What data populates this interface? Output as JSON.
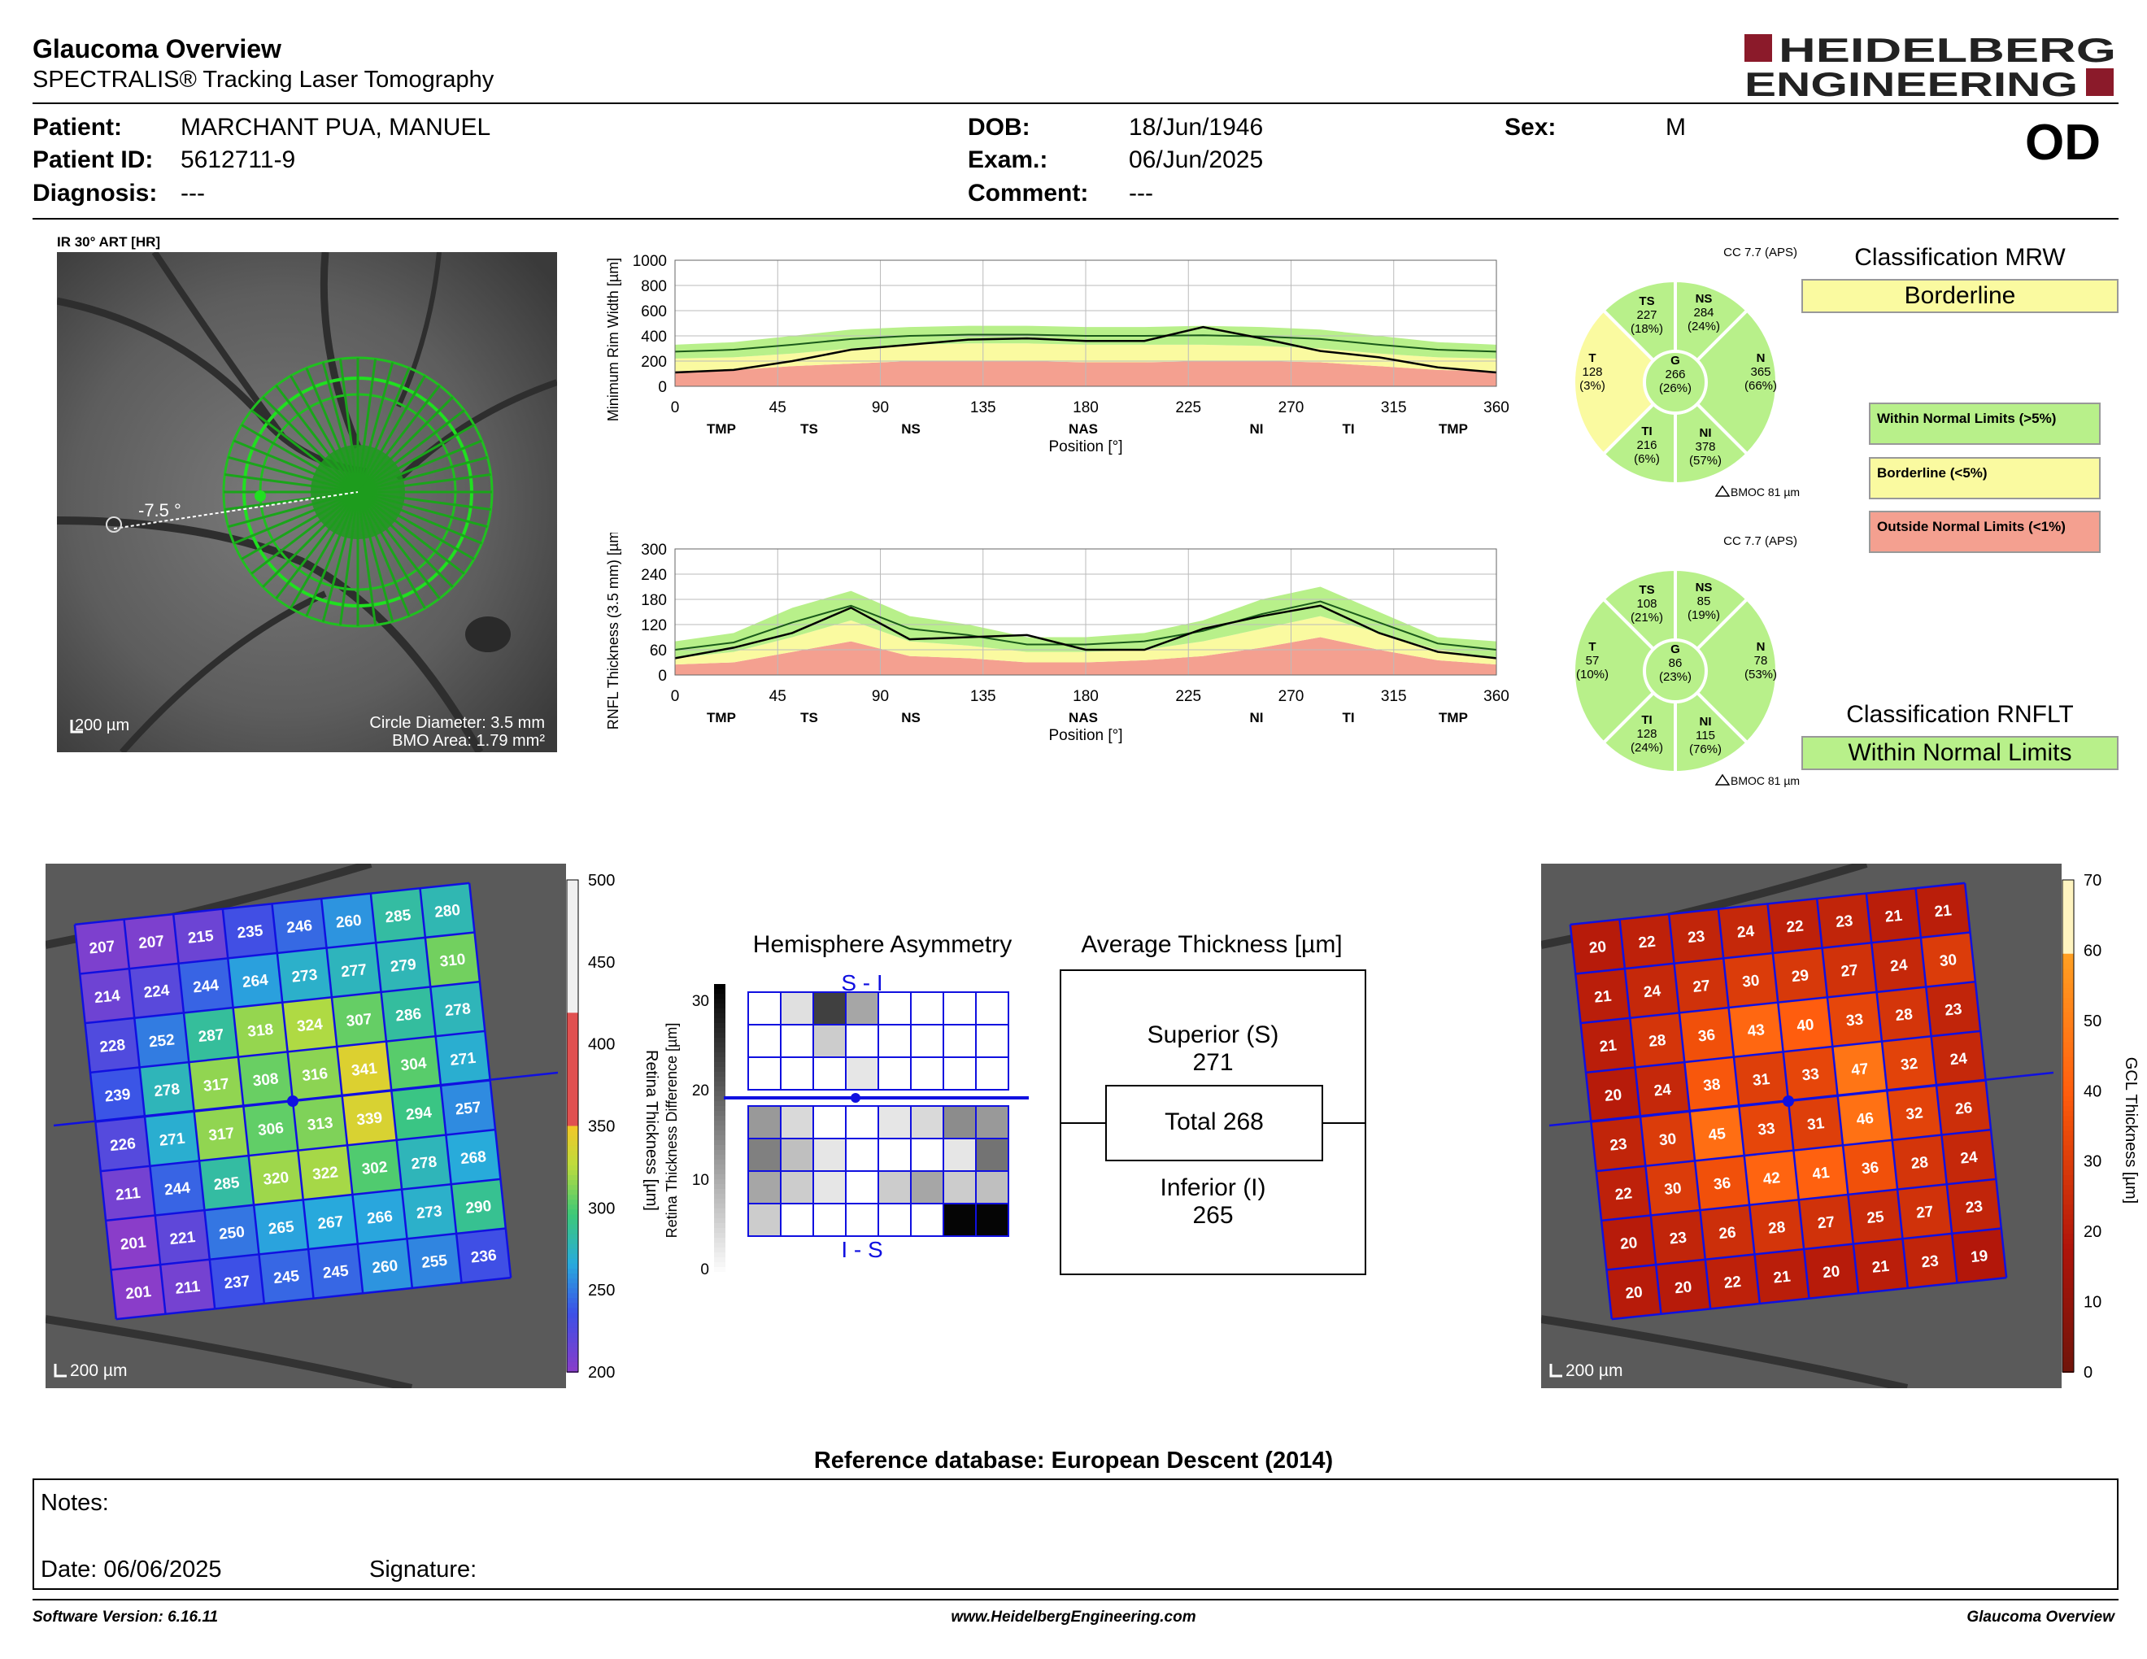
{
  "header": {
    "title": "Glaucoma Overview",
    "subtitle": "SPECTRALIS® Tracking Laser Tomography",
    "logo_line1": "HEIDELBERG",
    "logo_line2": "ENGINEERING",
    "eye": "OD"
  },
  "patient": {
    "patient_label": "Patient:",
    "patient_value": "MARCHANT PUA, MANUEL",
    "id_label": "Patient ID:",
    "id_value": "5612711-9",
    "diagnosis_label": "Diagnosis:",
    "diagnosis_value": "---",
    "dob_label": "DOB:",
    "dob_value": "18/Jun/1946",
    "exam_label": "Exam.:",
    "exam_value": "06/Jun/2025",
    "comment_label": "Comment:",
    "comment_value": "---",
    "sex_label": "Sex:",
    "sex_value": "M"
  },
  "ir_image": {
    "caption": "IR 30° ART [HR]",
    "angle": "-7.5 °",
    "scale": "200 µm",
    "circle_diameter": "Circle Diameter: 3.5 mm",
    "bmo_area": "BMO Area: 1.79 mm²"
  },
  "mrw_chart": {
    "ylabel": "Minimum Rim Width [µm]",
    "yticks": [
      "1000",
      "800",
      "600",
      "400",
      "200",
      "0"
    ],
    "xticks": [
      "0",
      "45",
      "90",
      "135",
      "180",
      "225",
      "270",
      "315",
      "360"
    ],
    "sectors": [
      "TMP",
      "TS",
      "NS",
      "NAS",
      "NI",
      "TI",
      "TMP"
    ],
    "xlabel": "Position [°]"
  },
  "rnfl_chart": {
    "ylabel": "RNFL Thickness (3.5 mm) [µm]",
    "yticks": [
      "300",
      "240",
      "180",
      "120",
      "60",
      "0"
    ],
    "xticks": [
      "0",
      "45",
      "90",
      "135",
      "180",
      "225",
      "270",
      "315",
      "360"
    ],
    "sectors": [
      "TMP",
      "TS",
      "NS",
      "NAS",
      "NI",
      "TI",
      "TMP"
    ],
    "xlabel": "Position [°]"
  },
  "mrw_pie": {
    "cc": "CC 7.7 (APS)",
    "bmoc": "BMOC 81 µm",
    "TS": {
      "name": "TS",
      "val": "227",
      "pct": "(18%)"
    },
    "NS": {
      "name": "NS",
      "val": "284",
      "pct": "(24%)"
    },
    "T": {
      "name": "T",
      "val": "128",
      "pct": "(3%)"
    },
    "G": {
      "name": "G",
      "val": "266",
      "pct": "(26%)"
    },
    "N": {
      "name": "N",
      "val": "365",
      "pct": "(66%)"
    },
    "TI": {
      "name": "TI",
      "val": "216",
      "pct": "(6%)"
    },
    "NI": {
      "name": "NI",
      "val": "378",
      "pct": "(57%)"
    }
  },
  "rnfl_pie": {
    "cc": "CC 7.7 (APS)",
    "bmoc": "BMOC 81 µm",
    "TS": {
      "name": "TS",
      "val": "108",
      "pct": "(21%)"
    },
    "NS": {
      "name": "NS",
      "val": "85",
      "pct": "(19%)"
    },
    "T": {
      "name": "T",
      "val": "57",
      "pct": "(10%)"
    },
    "G": {
      "name": "G",
      "val": "86",
      "pct": "(23%)"
    },
    "N": {
      "name": "N",
      "val": "78",
      "pct": "(53%)"
    },
    "TI": {
      "name": "TI",
      "val": "128",
      "pct": "(24%)"
    },
    "NI": {
      "name": "NI",
      "val": "115",
      "pct": "(76%)"
    }
  },
  "classification": {
    "mrw_title": "Classification MRW",
    "mrw_value": "Borderline",
    "rnflt_title": "Classification RNFLT",
    "rnflt_value": "Within Normal Limits",
    "legend_wnl": "Within Normal Limits (>5%)",
    "legend_bl": "Borderline (<5%)",
    "legend_onl": "Outside Normal Limits (<1%)",
    "color_wnl": "#b8f08a",
    "color_bl": "#fafaa0",
    "color_onl": "#f4a090"
  },
  "retina_map": {
    "scale": "200 µm",
    "colorbar_label": "Retina Thickness [µm]",
    "colorbar_ticks": [
      "500",
      "450",
      "400",
      "350",
      "300",
      "250",
      "200"
    ],
    "grid": [
      [
        "207",
        "207",
        "215",
        "235",
        "246",
        "260",
        "285",
        "280"
      ],
      [
        "214",
        "224",
        "244",
        "264",
        "273",
        "277",
        "279",
        "310"
      ],
      [
        "228",
        "252",
        "287",
        "318",
        "324",
        "307",
        "286",
        "278"
      ],
      [
        "239",
        "278",
        "317",
        "308",
        "316",
        "341",
        "304",
        "271"
      ],
      [
        "226",
        "271",
        "317",
        "306",
        "313",
        "339",
        "294",
        "257"
      ],
      [
        "211",
        "244",
        "285",
        "320",
        "322",
        "302",
        "278",
        "268"
      ],
      [
        "201",
        "221",
        "250",
        "265",
        "267",
        "266",
        "273",
        "290"
      ],
      [
        "201",
        "211",
        "237",
        "245",
        "245",
        "260",
        "255",
        "236"
      ]
    ]
  },
  "asymmetry": {
    "title": "Hemisphere Asymmetry",
    "ylabel": "Retina Thickness Difference [µm]",
    "ticks": [
      "30",
      "20",
      "10",
      "0"
    ],
    "top_label": "S - I",
    "bottom_label": "I - S",
    "top_cells": [
      [
        0,
        0.12,
        0.75,
        0.35,
        0,
        0,
        0,
        0
      ],
      [
        0,
        0,
        0.2,
        0,
        0,
        0,
        0,
        0
      ],
      [
        0,
        0,
        0,
        0.1,
        0,
        0,
        0,
        0
      ]
    ],
    "bottom_cells": [
      [
        0.4,
        0.15,
        0,
        0,
        0.1,
        0.15,
        0.45,
        0.4
      ],
      [
        0.5,
        0.25,
        0.1,
        0,
        0,
        0,
        0.1,
        0.55
      ],
      [
        0.35,
        0.2,
        0.1,
        0,
        0.2,
        0.35,
        0.2,
        0.25
      ],
      [
        0.2,
        0,
        0,
        0,
        0,
        0,
        0.98,
        0.98
      ]
    ]
  },
  "avg_thickness": {
    "title": "Average Thickness [µm]",
    "superior_label": "Superior (S)",
    "superior_value": "271",
    "total": "Total 268",
    "inferior_label": "Inferior (I)",
    "inferior_value": "265"
  },
  "gcl_map": {
    "scale": "200 µm",
    "colorbar_label": "GCL  Thickness [µm]",
    "colorbar_ticks": [
      "70",
      "60",
      "50",
      "40",
      "30",
      "20",
      "10",
      "0"
    ],
    "grid": [
      [
        "20",
        "22",
        "23",
        "24",
        "22",
        "23",
        "21",
        "21"
      ],
      [
        "21",
        "24",
        "27",
        "30",
        "29",
        "27",
        "24",
        "30"
      ],
      [
        "21",
        "28",
        "36",
        "43",
        "40",
        "33",
        "28",
        "23"
      ],
      [
        "20",
        "24",
        "38",
        "31",
        "33",
        "47",
        "32",
        "24"
      ],
      [
        "23",
        "30",
        "45",
        "33",
        "31",
        "46",
        "32",
        "26"
      ],
      [
        "22",
        "30",
        "36",
        "42",
        "41",
        "36",
        "28",
        "24"
      ],
      [
        "20",
        "23",
        "26",
        "28",
        "27",
        "25",
        "27",
        "23"
      ],
      [
        "20",
        "20",
        "22",
        "21",
        "20",
        "21",
        "23",
        "19"
      ]
    ]
  },
  "reference": "Reference database: European Descent (2014)",
  "notes": {
    "notes_label": "Notes:",
    "date_label": "Date: 06/06/2025",
    "signature_label": "Signature:"
  },
  "footer": {
    "software": "Software Version: 6.16.11",
    "website": "www.HeidelbergEngineering.com",
    "report": "Glaucoma Overview"
  }
}
